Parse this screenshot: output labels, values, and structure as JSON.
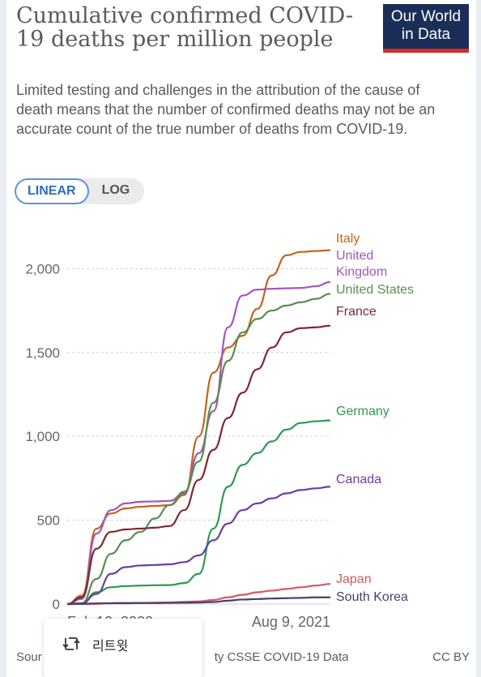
{
  "header": {
    "title": "Cumulative confirmed COVID-19 deaths per million people",
    "subtitle": "Limited testing and challenges in the attribution of the cause of death means that the number of confirmed deaths may not be an accurate count of the true number of deaths from COVID-19.",
    "logo_line1": "Our World",
    "logo_line2": "in Data"
  },
  "toggle": {
    "linear_label": "LINEAR",
    "log_label": "LOG",
    "selected": "LINEAR"
  },
  "footer": {
    "source": "Sour",
    "source_tail": "ty CSSE COVID-19 Data",
    "license": "CC BY"
  },
  "overlay": {
    "retweet_label": "리트윗",
    "icon": "retweet-icon"
  },
  "chart_data": {
    "type": "line",
    "title": "Cumulative confirmed COVID-19 deaths per million people",
    "xlabel": "",
    "ylabel": "",
    "ylim": [
      0,
      2200
    ],
    "yticks": [
      0,
      500,
      1000,
      1500,
      2000
    ],
    "ytick_labels": [
      "0",
      "500",
      "1,000",
      "1,500",
      "2,000"
    ],
    "x_end_label": "Aug 9, 2021",
    "x_start_label": "Feb 10, 2020",
    "x_start_visible": "Feb 10 2020",
    "x": [
      "2020-02",
      "2020-03",
      "2020-04",
      "2020-05",
      "2020-06",
      "2020-07",
      "2020-08",
      "2020-09",
      "2020-10",
      "2020-11",
      "2020-12",
      "2021-01",
      "2021-02",
      "2021-03",
      "2021-04",
      "2021-05",
      "2021-06",
      "2021-07",
      "2021-08"
    ],
    "grid": true,
    "series": [
      {
        "name": "Italy",
        "label_lines": [
          "Italy"
        ],
        "color": "#c1641d",
        "values": [
          0,
          50,
          450,
          540,
          570,
          580,
          585,
          590,
          650,
          1000,
          1380,
          1530,
          1600,
          1760,
          1960,
          2080,
          2100,
          2105,
          2110
        ]
      },
      {
        "name": "United Kingdom",
        "label_lines": [
          "United",
          "Kingdom"
        ],
        "color": "#a455c0",
        "values": [
          0,
          30,
          420,
          560,
          600,
          610,
          612,
          615,
          660,
          900,
          1150,
          1650,
          1840,
          1875,
          1880,
          1883,
          1885,
          1895,
          1920
        ]
      },
      {
        "name": "United States",
        "label_lines": [
          "United States"
        ],
        "color": "#578e4d",
        "values": [
          0,
          5,
          150,
          300,
          380,
          430,
          510,
          590,
          670,
          850,
          1200,
          1450,
          1620,
          1700,
          1750,
          1780,
          1800,
          1820,
          1850
        ]
      },
      {
        "name": "France",
        "label_lines": [
          "France"
        ],
        "color": "#7c2935",
        "values": [
          0,
          40,
          330,
          430,
          445,
          450,
          455,
          465,
          560,
          740,
          920,
          1110,
          1260,
          1400,
          1530,
          1620,
          1645,
          1650,
          1660
        ]
      },
      {
        "name": "Germany",
        "label_lines": [
          "Germany"
        ],
        "color": "#2e9a50",
        "values": [
          0,
          5,
          70,
          100,
          107,
          110,
          112,
          113,
          125,
          180,
          450,
          700,
          830,
          900,
          970,
          1040,
          1080,
          1090,
          1095
        ]
      },
      {
        "name": "Canada",
        "label_lines": [
          "Canada"
        ],
        "color": "#6a3fa0",
        "values": [
          0,
          3,
          60,
          180,
          220,
          230,
          233,
          237,
          250,
          290,
          380,
          480,
          560,
          600,
          630,
          660,
          680,
          690,
          700
        ]
      },
      {
        "name": "Japan",
        "label_lines": [
          "Japan"
        ],
        "color": "#d25a66",
        "values": [
          0,
          0,
          1,
          5,
          7,
          7,
          8,
          10,
          13,
          16,
          24,
          40,
          55,
          70,
          80,
          90,
          100,
          110,
          120
        ]
      },
      {
        "name": "South Korea",
        "label_lines": [
          "South Korea"
        ],
        "color": "#4a3f6b",
        "values": [
          0,
          1,
          4,
          5,
          5,
          6,
          6,
          7,
          8,
          9,
          12,
          20,
          27,
          30,
          33,
          35,
          37,
          40,
          40
        ]
      }
    ]
  }
}
